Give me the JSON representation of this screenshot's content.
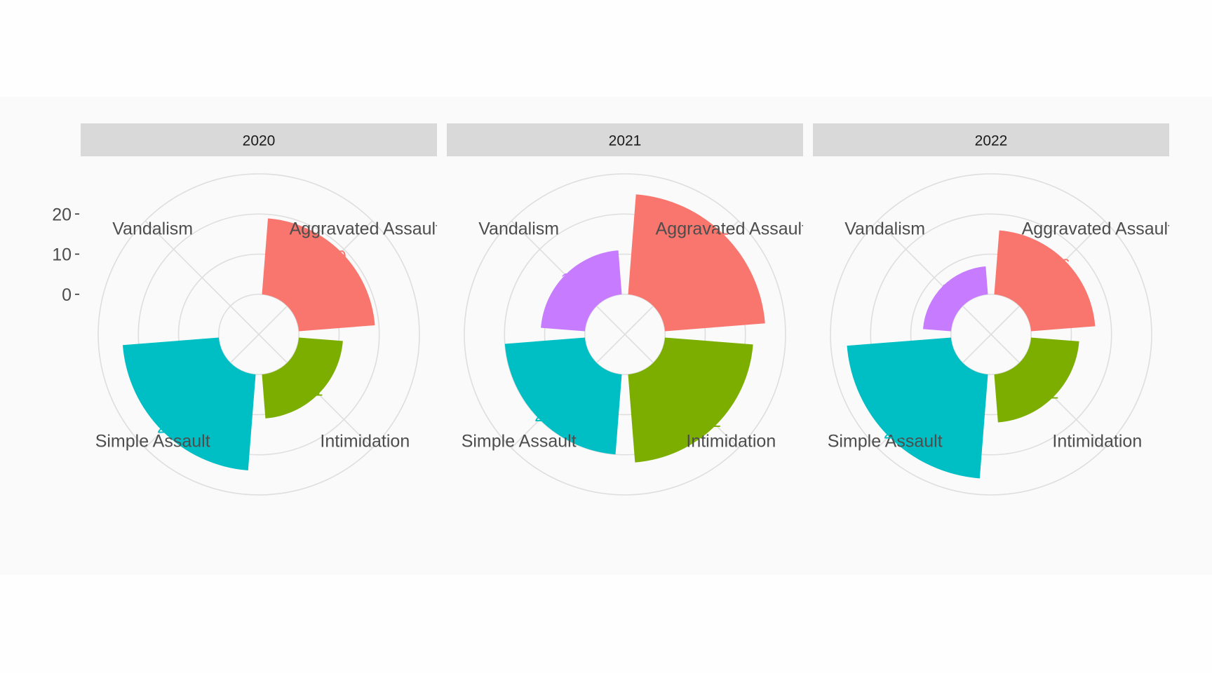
{
  "chart_data": {
    "type": "polar-bar",
    "panels": [
      {
        "strip_label": "2020",
        "values": [
          {
            "category": "Aggravated Assault",
            "value": 19,
            "label": "19"
          },
          {
            "category": "Intimidation",
            "value": 11,
            "label": "11"
          },
          {
            "category": "Simple Assault",
            "value": 24,
            "label": "24"
          },
          {
            "category": "Vandalism",
            "value": 0,
            "label": ""
          }
        ]
      },
      {
        "strip_label": "2021",
        "values": [
          {
            "category": "Aggravated Assault",
            "value": 25,
            "label": "25"
          },
          {
            "category": "Intimidation",
            "value": 22,
            "label": "22"
          },
          {
            "category": "Simple Assault",
            "value": 20,
            "label": "20"
          },
          {
            "category": "Vandalism",
            "value": 11,
            "label": "11"
          }
        ]
      },
      {
        "strip_label": "2022",
        "values": [
          {
            "category": "Aggravated Assault",
            "value": 16,
            "label": "16"
          },
          {
            "category": "Intimidation",
            "value": 12,
            "label": "12"
          },
          {
            "category": "Simple Assault",
            "value": 26,
            "label": "26"
          },
          {
            "category": "Vandalism",
            "value": 7,
            "label": "7"
          }
        ]
      }
    ],
    "category_labels": {
      "Aggravated Assault": "Aggravated Assault",
      "Intimidation": "Intimidation",
      "Simple Assault": "Simple Assault",
      "Vandalism": "Vandalism"
    },
    "radial_ticks": [
      {
        "value": 0,
        "label": "0"
      },
      {
        "value": 10,
        "label": "10"
      },
      {
        "value": 20,
        "label": "20"
      }
    ],
    "radial_range": [
      -10,
      30
    ],
    "colors": {
      "Aggravated Assault": "#F8766D",
      "Intimidation": "#7CAE00",
      "Simple Assault": "#00BFC4",
      "Vandalism": "#C77CFF"
    },
    "panel_background": "#fafafa",
    "strip_background": "#d9d9d9",
    "grid_color": "#dedede",
    "legend": "none"
  }
}
